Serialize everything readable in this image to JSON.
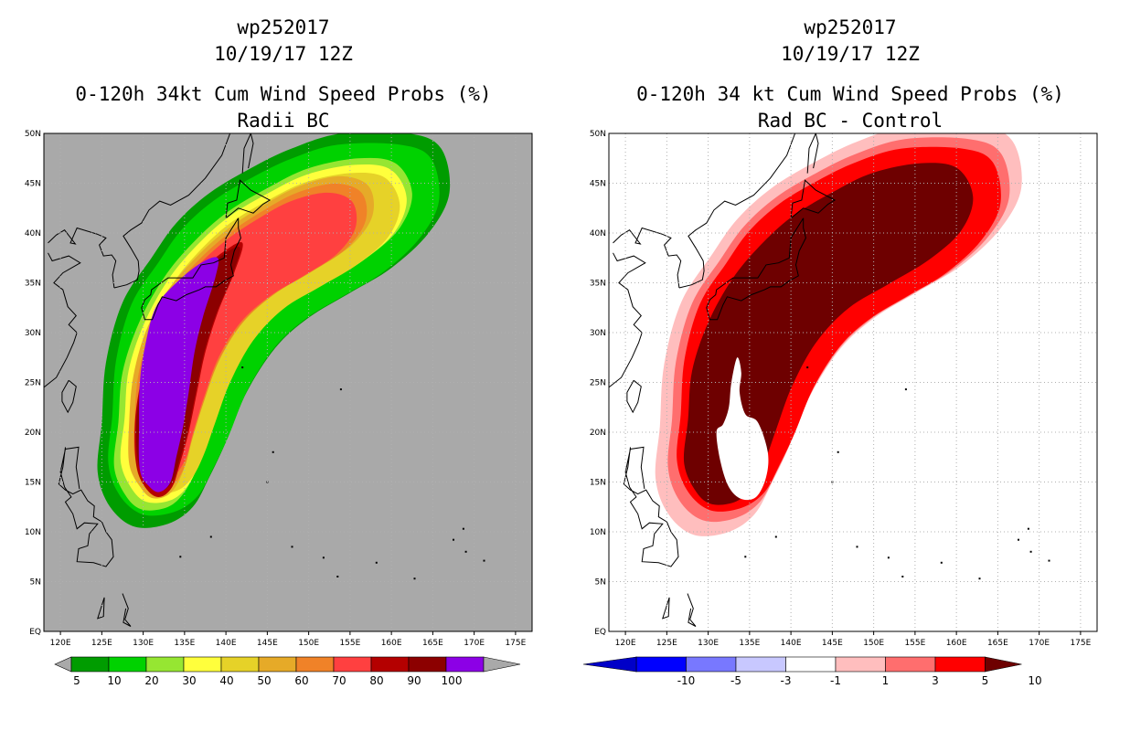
{
  "chart_data": [
    {
      "type": "filled-contour-map",
      "title_lines": [
        "wp252017",
        "10/19/17 12Z",
        "0-120h 34kt Cum Wind Speed Probs (%)",
        "Radii BC"
      ],
      "xlabel": "",
      "ylabel": "",
      "lon_range": [
        118,
        177
      ],
      "lat_range": [
        0,
        50
      ],
      "grid": true,
      "background": "#a9a9a9",
      "x_ticks": [
        "120E",
        "125E",
        "130E",
        "135E",
        "140E",
        "145E",
        "150E",
        "155E",
        "160E",
        "165E",
        "170E",
        "175E"
      ],
      "y_ticks": [
        "EQ",
        "5N",
        "10N",
        "15N",
        "20N",
        "25N",
        "30N",
        "35N",
        "40N",
        "45N",
        "50N"
      ],
      "colorbar": {
        "labels": [
          "5",
          "10",
          "20",
          "30",
          "40",
          "50",
          "60",
          "70",
          "80",
          "90",
          "100"
        ],
        "colors": [
          "#009c00",
          "#00d200",
          "#96e632",
          "#ffff3c",
          "#e6d228",
          "#e6aa28",
          "#f08228",
          "#ff4040",
          "#b40000",
          "#8c0000",
          "#8c00e6"
        ],
        "min_arrow": "#a9a9a9",
        "max_arrow": "#a9a9a9"
      },
      "levels": [
        {
          "min": 5,
          "color": "#009c00"
        },
        {
          "min": 10,
          "color": "#00d200"
        },
        {
          "min": 20,
          "color": "#96e632"
        },
        {
          "min": 30,
          "color": "#ffff3c"
        },
        {
          "min": 40,
          "color": "#e6d228"
        },
        {
          "min": 50,
          "color": "#e6aa28"
        },
        {
          "min": 60,
          "color": "#f08228"
        },
        {
          "min": 70,
          "color": "#ff4040"
        },
        {
          "min": 80,
          "color": "#b40000"
        },
        {
          "min": 90,
          "color": "#8c0000"
        },
        {
          "min": 100,
          "color": "#8c00e6"
        }
      ]
    },
    {
      "type": "filled-contour-map",
      "title_lines": [
        "wp252017",
        "10/19/17 12Z",
        "0-120h 34 kt Cum Wind Speed Probs (%)",
        "Rad BC - Control"
      ],
      "xlabel": "",
      "ylabel": "",
      "lon_range": [
        118,
        177
      ],
      "lat_range": [
        0,
        50
      ],
      "grid": true,
      "background": "#ffffff",
      "x_ticks": [
        "120E",
        "125E",
        "130E",
        "135E",
        "140E",
        "145E",
        "150E",
        "155E",
        "160E",
        "165E",
        "170E",
        "175E"
      ],
      "y_ticks": [
        "EQ",
        "5N",
        "10N",
        "15N",
        "20N",
        "25N",
        "30N",
        "35N",
        "40N",
        "45N",
        "50N"
      ],
      "colorbar": {
        "labels": [
          "-10",
          "-5",
          "-3",
          "-1",
          "1",
          "3",
          "5",
          "10"
        ],
        "colors": [
          "#0000c8",
          "#0000ff",
          "#7878ff",
          "#c8c8ff",
          "#ffffff",
          "#ffbebe",
          "#ff6e6e",
          "#ff0000",
          "#6e0000"
        ],
        "min_arrow": "#000096",
        "max_arrow": "#6e0000"
      },
      "levels": [
        {
          "min": 1,
          "color": "#ffbebe"
        },
        {
          "min": 3,
          "color": "#ff6e6e"
        },
        {
          "min": 5,
          "color": "#ff0000"
        },
        {
          "min": 10,
          "color": "#6e0000"
        }
      ]
    }
  ],
  "titles": {
    "left": [
      "wp252017",
      "10/19/17 12Z",
      "0-120h 34kt Cum Wind Speed Probs (%)",
      "Radii BC"
    ],
    "right": [
      "wp252017",
      "10/19/17 12Z",
      "0-120h 34 kt Cum Wind Speed Probs (%)",
      "Rad BC - Control"
    ]
  }
}
